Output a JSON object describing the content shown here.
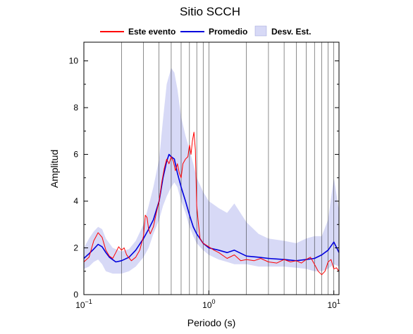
{
  "chart_data": {
    "type": "line",
    "title": "Sitio SCCH",
    "xlabel": "Periodo (s)",
    "ylabel": "Amplitud",
    "xscale": "log",
    "xlim": [
      0.1,
      11
    ],
    "ylim": [
      0,
      10.8
    ],
    "xticks": [
      {
        "value": 0.1,
        "base": "10",
        "exp": "−1"
      },
      {
        "value": 1,
        "base": "10",
        "exp": "0"
      },
      {
        "value": 10,
        "base": "10",
        "exp": "1"
      }
    ],
    "yticks": [
      0,
      2,
      4,
      6,
      8,
      10
    ],
    "grid": "vertical-minor-log",
    "legend": {
      "placement": "top",
      "items": [
        {
          "label": "Este evento",
          "kind": "line",
          "color": "#ff0000"
        },
        {
          "label": "Promedio",
          "kind": "line",
          "color": "#0000dd"
        },
        {
          "label": "Desv. Est.",
          "kind": "band",
          "color": "#d7d9f6"
        }
      ]
    },
    "colors": {
      "event": "#ff0000",
      "mean": "#0000dd",
      "band": "#d7d9f6"
    },
    "band": {
      "name": "Desv. Est.",
      "x": [
        0.1,
        0.11,
        0.12,
        0.13,
        0.14,
        0.15,
        0.17,
        0.2,
        0.23,
        0.26,
        0.3,
        0.33,
        0.36,
        0.4,
        0.43,
        0.46,
        0.5,
        0.53,
        0.56,
        0.6,
        0.65,
        0.7,
        0.75,
        0.8,
        0.9,
        1.0,
        1.2,
        1.4,
        1.6,
        2.0,
        2.5,
        3,
        4,
        5,
        6,
        7,
        8,
        9,
        10,
        11
      ],
      "upper": [
        2.0,
        2.4,
        2.7,
        2.9,
        2.8,
        2.4,
        2.0,
        1.85,
        1.95,
        2.3,
        3.0,
        3.8,
        4.6,
        5.8,
        7.5,
        9.0,
        9.7,
        9.5,
        8.8,
        7.6,
        6.8,
        6.2,
        5.6,
        5.0,
        4.4,
        4.0,
        3.7,
        3.5,
        3.9,
        3.1,
        2.6,
        2.4,
        2.3,
        2.2,
        2.4,
        2.5,
        2.5,
        3.2,
        5.0,
        3.6
      ],
      "lower": [
        1.1,
        1.2,
        1.4,
        1.5,
        1.3,
        1.0,
        0.9,
        0.9,
        1.0,
        1.2,
        1.6,
        2.0,
        2.6,
        3.2,
        3.8,
        4.2,
        4.6,
        4.8,
        4.6,
        4.0,
        3.5,
        2.9,
        2.5,
        2.2,
        1.9,
        1.7,
        1.5,
        1.4,
        1.3,
        1.3,
        1.2,
        1.2,
        1.2,
        1.15,
        1.1,
        1.0,
        1.0,
        1.1,
        1.3,
        1.2
      ]
    },
    "series": [
      {
        "name": "Promedio",
        "color": "#0000dd",
        "x": [
          0.1,
          0.11,
          0.12,
          0.13,
          0.14,
          0.15,
          0.16,
          0.18,
          0.2,
          0.23,
          0.26,
          0.3,
          0.33,
          0.36,
          0.4,
          0.43,
          0.46,
          0.48,
          0.5,
          0.53,
          0.56,
          0.6,
          0.65,
          0.7,
          0.75,
          0.8,
          0.9,
          1.0,
          1.2,
          1.4,
          1.6,
          2.0,
          2.5,
          3,
          4,
          5,
          6,
          7,
          8,
          9,
          10,
          11
        ],
        "y": [
          1.55,
          1.75,
          1.95,
          2.15,
          2.05,
          1.8,
          1.6,
          1.4,
          1.45,
          1.6,
          1.9,
          2.4,
          2.8,
          3.2,
          4.0,
          5.0,
          5.7,
          6.0,
          5.9,
          5.8,
          5.2,
          4.6,
          4.0,
          3.4,
          2.9,
          2.6,
          2.2,
          2.0,
          1.9,
          1.8,
          1.9,
          1.65,
          1.6,
          1.55,
          1.5,
          1.45,
          1.5,
          1.55,
          1.7,
          1.9,
          2.25,
          1.8
        ]
      },
      {
        "name": "Este evento",
        "color": "#ff0000",
        "x": [
          0.1,
          0.11,
          0.12,
          0.13,
          0.14,
          0.15,
          0.16,
          0.17,
          0.18,
          0.19,
          0.2,
          0.21,
          0.22,
          0.24,
          0.26,
          0.28,
          0.3,
          0.31,
          0.32,
          0.33,
          0.34,
          0.36,
          0.38,
          0.4,
          0.42,
          0.44,
          0.46,
          0.48,
          0.5,
          0.52,
          0.54,
          0.56,
          0.58,
          0.6,
          0.62,
          0.65,
          0.68,
          0.7,
          0.72,
          0.74,
          0.76,
          0.78,
          0.8,
          0.82,
          0.85,
          0.9,
          1.0,
          1.1,
          1.2,
          1.4,
          1.6,
          1.8,
          2.0,
          2.3,
          2.6,
          3.0,
          3.5,
          4.0,
          4.5,
          5.0,
          5.5,
          6.0,
          6.5,
          7.0,
          7.5,
          8.0,
          8.5,
          9.0,
          9.5,
          10,
          10.5,
          11
        ],
        "y": [
          1.4,
          1.6,
          2.3,
          2.65,
          2.45,
          1.9,
          1.65,
          1.55,
          1.8,
          2.05,
          1.9,
          2.0,
          1.7,
          1.45,
          1.6,
          1.9,
          2.5,
          3.4,
          3.3,
          2.8,
          2.6,
          2.9,
          3.5,
          4.0,
          4.8,
          5.4,
          5.8,
          5.6,
          5.9,
          5.7,
          5.3,
          5.6,
          5.2,
          5.0,
          5.6,
          5.8,
          5.9,
          6.4,
          6.0,
          6.6,
          6.95,
          6.2,
          3.8,
          3.2,
          2.4,
          2.2,
          2.05,
          1.9,
          1.8,
          1.55,
          1.7,
          1.45,
          1.5,
          1.45,
          1.55,
          1.4,
          1.35,
          1.5,
          1.4,
          1.45,
          1.35,
          1.5,
          1.6,
          1.3,
          1.0,
          0.85,
          1.0,
          1.4,
          1.5,
          1.1,
          1.15,
          1.0
        ]
      }
    ]
  }
}
